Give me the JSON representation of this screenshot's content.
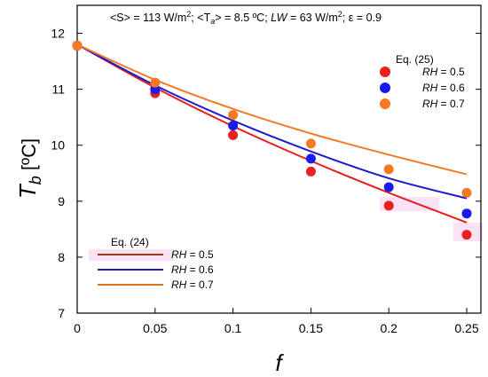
{
  "chart_data": {
    "type": "scatter",
    "annotation": {
      "s_lhs": "<S>",
      "s_rhs": " = 113 W/m",
      "ta_lhs": "<T",
      "ta_sub": "a",
      "ta_rhs": "> = 8.5 ºC;",
      "lw_lhs": "LW",
      "lw_rhs": " = 63 W/m",
      "eps": "ε = 0.9",
      "sup2": "2",
      "sep": ";"
    },
    "ylabel_main": "T",
    "ylabel_sub": "b",
    "ylabel_unit": "[ºC]",
    "xlabel": "f",
    "xlim": [
      0,
      0.25
    ],
    "ylim": [
      7,
      12.5
    ],
    "xticks": [
      "0",
      "0.05",
      "0.1",
      "0.15",
      "0.2",
      "0.25"
    ],
    "yticks": [
      "7",
      "8",
      "9",
      "10",
      "11",
      "12"
    ],
    "x": [
      0,
      0.05,
      0.1,
      0.15,
      0.2,
      0.25
    ],
    "legend_points": {
      "title": "Eq. (25)",
      "entries": [
        {
          "var": "RH",
          "rest": " = 0.5"
        },
        {
          "var": "RH",
          "rest": " = 0.6"
        },
        {
          "var": "RH",
          "rest": " = 0.7"
        }
      ]
    },
    "legend_lines": {
      "title": "Eq. (24)",
      "entries": [
        {
          "var": "RH",
          "rest": " = 0.5"
        },
        {
          "var": "RH",
          "rest": " = 0.6"
        },
        {
          "var": "RH",
          "rest": " = 0.7"
        }
      ]
    },
    "point_series": [
      {
        "name": "RH = 0.5",
        "color": "#e8211c",
        "values": [
          11.78,
          10.93,
          10.18,
          9.53,
          8.92,
          8.4
        ]
      },
      {
        "name": "RH = 0.6",
        "color": "#1a1aee",
        "values": [
          11.78,
          11.0,
          10.35,
          9.76,
          9.25,
          8.78
        ]
      },
      {
        "name": "RH = 0.7",
        "color": "#f5791f",
        "values": [
          11.78,
          11.12,
          10.54,
          10.03,
          9.57,
          9.15
        ]
      }
    ],
    "line_series": [
      {
        "name": "RH = 0.5",
        "color": "#e61e1e",
        "values": [
          11.8,
          11.03,
          10.34,
          9.72,
          9.15,
          8.62
        ]
      },
      {
        "name": "RH = 0.6",
        "color": "#1c1ccc",
        "values": [
          11.8,
          11.07,
          10.44,
          9.89,
          9.41,
          9.05
        ]
      },
      {
        "name": "RH = 0.7",
        "color": "#f57a26",
        "values": [
          11.8,
          11.17,
          10.65,
          10.21,
          9.83,
          9.48
        ]
      }
    ],
    "line_legend_colors": [
      "#9b3a1e",
      "#1a1acc",
      "#d97a1a"
    ],
    "point_legend_colors": [
      "#e8211c",
      "#1a1aee",
      "#f5791f"
    ],
    "grid": false
  }
}
